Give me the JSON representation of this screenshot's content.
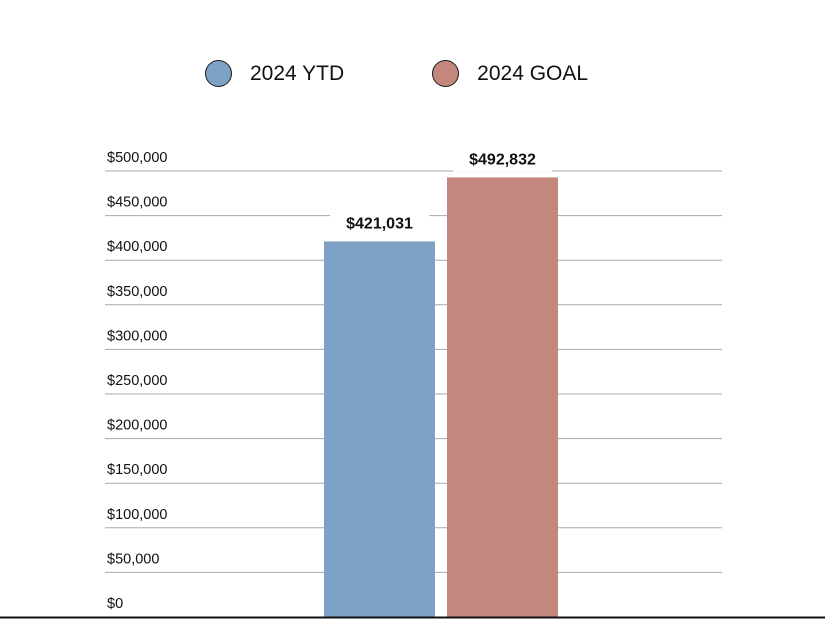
{
  "chart_data": {
    "type": "bar",
    "categories": [
      "2024 YTD",
      "2024 GOAL"
    ],
    "series": [
      {
        "name": "2024 YTD",
        "values": [
          421031,
          null
        ],
        "color": "#7ea2c6"
      },
      {
        "name": "2024 GOAL",
        "values": [
          null,
          492832
        ],
        "color": "#c4877d"
      }
    ],
    "values": [
      421031,
      492832
    ],
    "data_labels": [
      "$421,031",
      "$492,832"
    ],
    "ylim": [
      0,
      500000
    ],
    "yticks": [
      0,
      50000,
      100000,
      150000,
      200000,
      250000,
      300000,
      350000,
      400000,
      450000,
      500000
    ],
    "ytick_labels": [
      "$0",
      "$50,000",
      "$100,000",
      "$150,000",
      "$200,000",
      "$250,000",
      "$300,000",
      "$350,000",
      "$400,000",
      "$450,000",
      "$500,000"
    ],
    "grid": true,
    "legend_position": "top-center",
    "title": "",
    "xlabel": "",
    "ylabel": ""
  },
  "legend": {
    "items": [
      {
        "label": "2024 YTD",
        "color": "#7ea2c6"
      },
      {
        "label": "2024 GOAL",
        "color": "#c4877d"
      }
    ]
  }
}
